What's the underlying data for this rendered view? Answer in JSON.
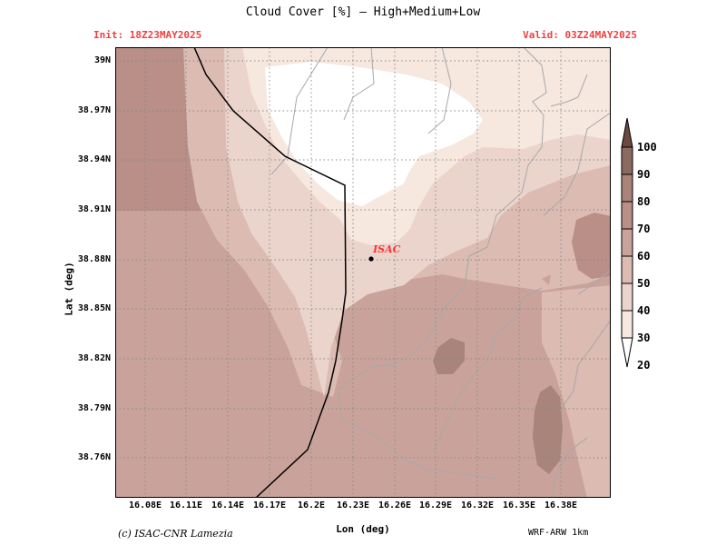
{
  "title": "Cloud Cover [%] — High+Medium+Low",
  "init": "Init: 18Z23MAY2025",
  "valid": "Valid: 03Z24MAY2025",
  "xlabel": "Lon (deg)",
  "ylabel": "Lat (deg)",
  "credit": "(c) ISAC-CNR Lamezia",
  "model": "WRF-ARW 1km",
  "station": {
    "name": "ISAC",
    "color": "#ff3333"
  },
  "lat_ticks": [
    "39N",
    "38.97N",
    "38.94N",
    "38.91N",
    "38.88N",
    "38.85N",
    "38.82N",
    "38.79N",
    "38.76N"
  ],
  "lon_ticks": [
    "16.08E",
    "16.11E",
    "16.14E",
    "16.17E",
    "16.2E",
    "16.23E",
    "16.26E",
    "16.29E",
    "16.32E",
    "16.35E",
    "16.38E"
  ],
  "colorbar": {
    "labels": [
      "100",
      "90",
      "80",
      "70",
      "60",
      "50",
      "40",
      "30",
      "20"
    ],
    "colors": [
      "#6b4a40",
      "#8b6a5f",
      "#a8847a",
      "#b98f87",
      "#c9a39b",
      "#dbbbb2",
      "#ebd4cc",
      "#f6e7df",
      "#ffffff"
    ]
  },
  "field_colors": {
    "c20": "#ffffff",
    "c30": "#f6e7df",
    "c40": "#ebd4cc",
    "c50": "#dbbbb2",
    "c60": "#c9a39b",
    "c70": "#b98f87",
    "c80": "#a8847a"
  }
}
